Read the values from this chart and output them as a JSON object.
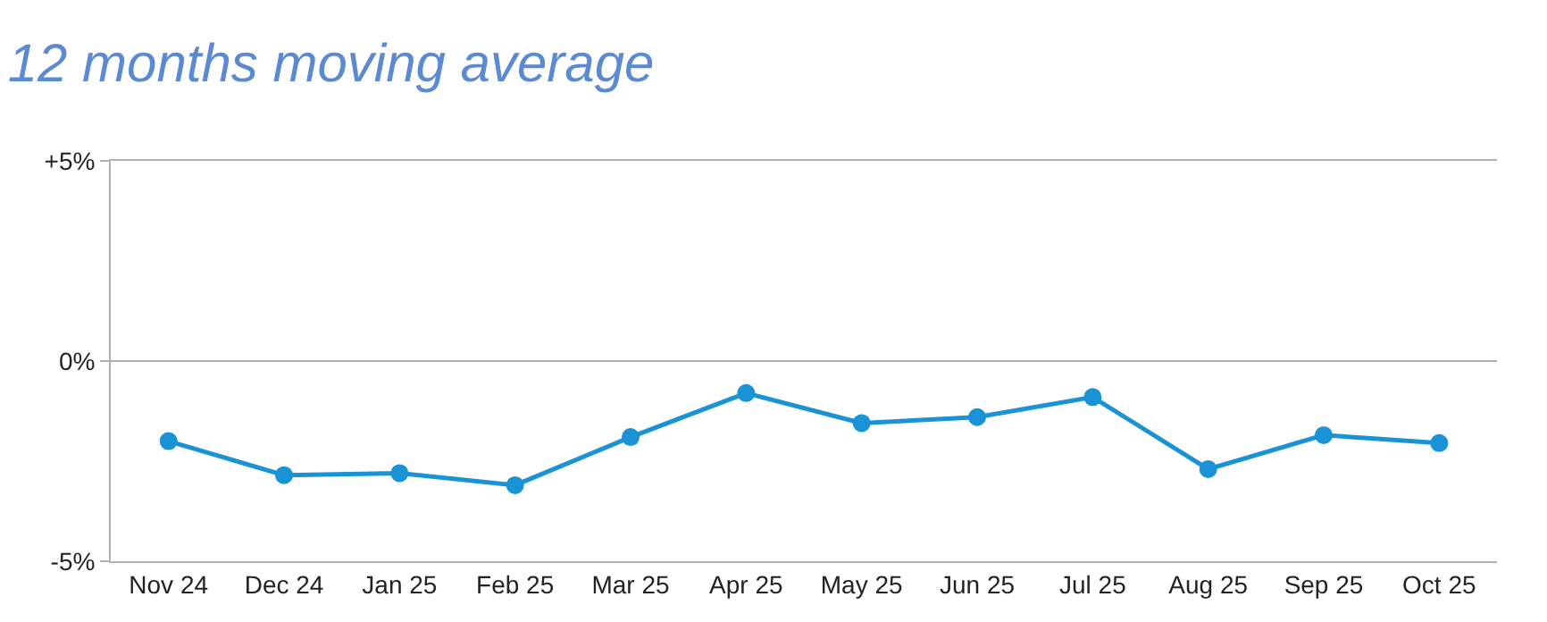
{
  "chart_data": {
    "type": "line",
    "title": "12 months moving average",
    "categories": [
      "Nov 24",
      "Dec 24",
      "Jan 25",
      "Feb 25",
      "Mar 25",
      "Apr 25",
      "May 25",
      "Jun 25",
      "Jul 25",
      "Aug 25",
      "Sep 25",
      "Oct 25"
    ],
    "series": [
      {
        "color": "#1a93d6",
        "values": [
          -2.0,
          -2.85,
          -2.8,
          -3.1,
          -1.9,
          -0.8,
          -1.55,
          -1.4,
          -0.9,
          -2.7,
          -1.85,
          -2.05
        ]
      }
    ],
    "ylim": [
      -5,
      5
    ],
    "yticks": [
      {
        "value": 5,
        "label": "+5%"
      },
      {
        "value": 0,
        "label": "0%"
      },
      {
        "value": -5,
        "label": "-5%"
      }
    ],
    "grid": "y",
    "marker": "circle",
    "line_style": "solid"
  }
}
